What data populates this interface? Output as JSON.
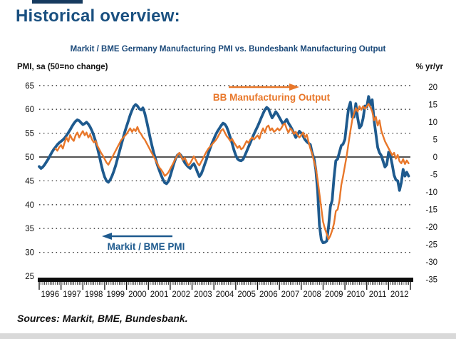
{
  "page": {
    "title": "Historical overview:",
    "sources": "Sources: Markit, BME, Bundesbank."
  },
  "chart_data": {
    "type": "line",
    "title": "Markit / BME Germany Manufacturing PMI vs. Bundesbank Manufacturing Output",
    "grid": "dotted horizontal lines at left-axis ticks, solid line at 50 (=0 %yr/yr)",
    "legend_position": "in-plot text annotations with arrows",
    "left_axis": {
      "label": "PMI, sa (50=no change)",
      "min": 25,
      "max": 65,
      "baseline": 50,
      "ticks": [
        65,
        60,
        55,
        50,
        45,
        40,
        35,
        30,
        25
      ]
    },
    "right_axis": {
      "label": "% yr/yr",
      "min": -35,
      "max": 20,
      "baseline": 0,
      "ticks": [
        20,
        15,
        10,
        5,
        0,
        -5,
        -10,
        -15,
        -20,
        -25,
        -30,
        -35
      ]
    },
    "x_axis": {
      "start_year": 1996,
      "end_year": 2013,
      "tick_unit": "monthly",
      "years": [
        1996,
        1997,
        1998,
        1999,
        2000,
        2001,
        2002,
        2003,
        2004,
        2005,
        2006,
        2007,
        2008,
        2009,
        2010,
        2011,
        2012
      ]
    },
    "series": [
      {
        "name": "Markit / BME PMI",
        "axis": "left",
        "color": "#1e5a8e",
        "start": 1996.0,
        "step_months": 1,
        "values": [
          48.0,
          47.6,
          47.9,
          48.4,
          49.0,
          49.6,
          50.3,
          51.0,
          51.6,
          52.1,
          52.6,
          53.0,
          53.3,
          53.6,
          54.0,
          54.5,
          55.1,
          55.7,
          56.4,
          57.0,
          57.5,
          57.8,
          57.6,
          57.2,
          56.8,
          57.0,
          57.3,
          56.9,
          56.3,
          55.5,
          54.5,
          53.3,
          51.9,
          50.3,
          48.6,
          47.0,
          45.8,
          45.0,
          44.7,
          45.2,
          46.0,
          47.0,
          48.2,
          49.6,
          51.0,
          52.4,
          53.8,
          55.2,
          56.4,
          57.6,
          58.8,
          59.8,
          60.6,
          61.0,
          60.7,
          60.1,
          59.9,
          60.3,
          59.2,
          57.6,
          55.8,
          54.0,
          52.3,
          50.8,
          49.5,
          48.3,
          47.2,
          46.2,
          45.3,
          44.6,
          44.4,
          44.9,
          46.0,
          47.3,
          48.6,
          49.7,
          50.4,
          50.7,
          50.3,
          49.5,
          48.8,
          48.3,
          47.9,
          47.6,
          48.2,
          48.6,
          47.8,
          46.8,
          45.9,
          46.4,
          47.4,
          48.5,
          49.6,
          50.8,
          51.9,
          52.9,
          53.8,
          54.7,
          55.4,
          56.0,
          56.6,
          57.1,
          56.9,
          56.3,
          55.3,
          54.1,
          52.9,
          51.5,
          50.4,
          49.6,
          49.3,
          49.2,
          49.5,
          50.3,
          51.2,
          52.1,
          53.0,
          53.9,
          54.8,
          55.6,
          56.4,
          57.3,
          58.2,
          59.1,
          59.9,
          60.4,
          60.1,
          59.1,
          58.2,
          58.8,
          59.5,
          59.0,
          58.3,
          57.6,
          56.9,
          57.4,
          57.9,
          57.1,
          56.5,
          55.8,
          54.9,
          54.1,
          54.7,
          55.4,
          55.0,
          54.4,
          53.7,
          53.2,
          52.9,
          52.6,
          50.9,
          49.7,
          47.4,
          42.9,
          35.7,
          32.7,
          32.0,
          32.1,
          32.4,
          35.4,
          39.6,
          40.9,
          45.7,
          49.2,
          49.6,
          51.0,
          52.4,
          52.7,
          53.7,
          57.2,
          60.2,
          61.5,
          58.4,
          58.4,
          61.2,
          58.2,
          56.1,
          56.6,
          58.1,
          60.7,
          60.5,
          62.7,
          60.9,
          62.0,
          57.7,
          54.9,
          52.0,
          50.9,
          50.3,
          49.1,
          47.9,
          48.4,
          51.0,
          50.2,
          48.4,
          46.2,
          45.2,
          45.0,
          43.0,
          44.7,
          47.4,
          46.0,
          46.8,
          46.0
        ]
      },
      {
        "name": "BB Manufacturing Output",
        "axis": "right",
        "color": "#e8772a",
        "start": 1996.75,
        "step_months": 1,
        "values": [
          2.4,
          1.8,
          2.8,
          3.4,
          2.4,
          4.2,
          5.6,
          4.4,
          6.3,
          5.2,
          4.6,
          6.2,
          7.0,
          5.6,
          6.6,
          7.4,
          6.2,
          7.0,
          5.6,
          6.4,
          5.0,
          4.2,
          4.6,
          3.2,
          2.2,
          1.2,
          0.4,
          -0.6,
          -1.6,
          -2.2,
          -1.2,
          -0.2,
          0.8,
          1.8,
          2.8,
          3.8,
          4.8,
          5.4,
          6.0,
          6.6,
          7.4,
          8.2,
          7.2,
          8.0,
          7.4,
          8.6,
          7.2,
          6.6,
          5.6,
          5.0,
          4.0,
          3.0,
          2.0,
          1.0,
          0.0,
          -1.0,
          -2.0,
          -3.0,
          -3.6,
          -4.4,
          -5.4,
          -5.0,
          -4.4,
          -3.4,
          -2.4,
          -1.4,
          -0.4,
          0.6,
          1.2,
          0.2,
          -0.8,
          -0.2,
          -1.4,
          -2.4,
          -1.8,
          -0.8,
          0.2,
          -0.8,
          -1.8,
          -2.4,
          -1.4,
          -0.4,
          0.6,
          1.6,
          2.4,
          3.0,
          3.6,
          4.2,
          4.8,
          5.6,
          6.6,
          7.6,
          8.0,
          7.0,
          6.0,
          5.4,
          4.6,
          5.2,
          4.2,
          3.4,
          2.6,
          3.2,
          2.2,
          2.6,
          3.6,
          4.6,
          4.0,
          5.0,
          5.6,
          5.0,
          5.6,
          6.2,
          5.2,
          7.0,
          8.2,
          7.0,
          8.6,
          9.0,
          7.6,
          8.2,
          7.2,
          7.6,
          8.2,
          7.6,
          8.2,
          9.2,
          9.6,
          8.0,
          7.0,
          8.2,
          7.6,
          6.6,
          7.2,
          6.2,
          5.6,
          6.2,
          7.0,
          5.6,
          6.4,
          4.4,
          2.4,
          1.0,
          -1.2,
          -3.2,
          -6.5,
          -10.5,
          -14.5,
          -18.5,
          -20.5,
          -22.0,
          -23.5,
          -22.5,
          -21.0,
          -19.0,
          -15.5,
          -15.0,
          -12.5,
          -8.0,
          -5.5,
          -2.5,
          0.5,
          4.0,
          7.5,
          10.5,
          12.5,
          14.0,
          13.0,
          14.5,
          13.5,
          14.5,
          13.8,
          14.5,
          15.2,
          14.2,
          13.0,
          10.5,
          11.5,
          9.0,
          10.5,
          7.5,
          6.0,
          4.5,
          3.5,
          2.5,
          1.5,
          0.5,
          1.2,
          -0.5,
          0.6,
          -1.2,
          -1.8,
          -0.6,
          -2.0,
          -1.0,
          -1.8
        ]
      }
    ],
    "annotations": [
      {
        "text": "BB Manufacturing Output",
        "color": "#e8772a",
        "arrow": "right"
      },
      {
        "text": "Markit / BME PMI",
        "color": "#1e5a8e",
        "arrow": "left"
      }
    ]
  }
}
